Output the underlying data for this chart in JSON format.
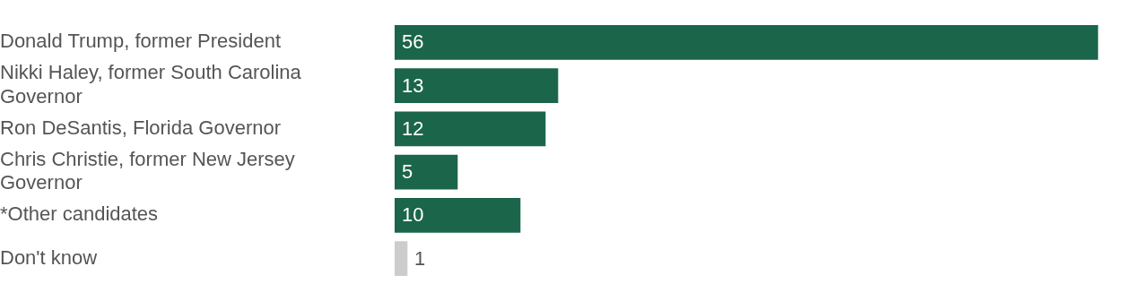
{
  "chart_data": {
    "type": "bar",
    "orientation": "horizontal",
    "categories": [
      "Donald Trump, former President",
      "Nikki Haley, former South Carolina Governor",
      "Ron DeSantis, Florida Governor",
      "Chris Christie, former New Jersey Governor",
      "*Other candidates",
      "Don't know"
    ],
    "values": [
      56,
      13,
      12,
      5,
      10,
      1
    ],
    "colors": [
      "#1b654a",
      "#1b654a",
      "#1b654a",
      "#1b654a",
      "#1b654a",
      "#cccccc"
    ],
    "data_labels": true,
    "tick_labels": "y",
    "grid": false,
    "legend": false
  }
}
